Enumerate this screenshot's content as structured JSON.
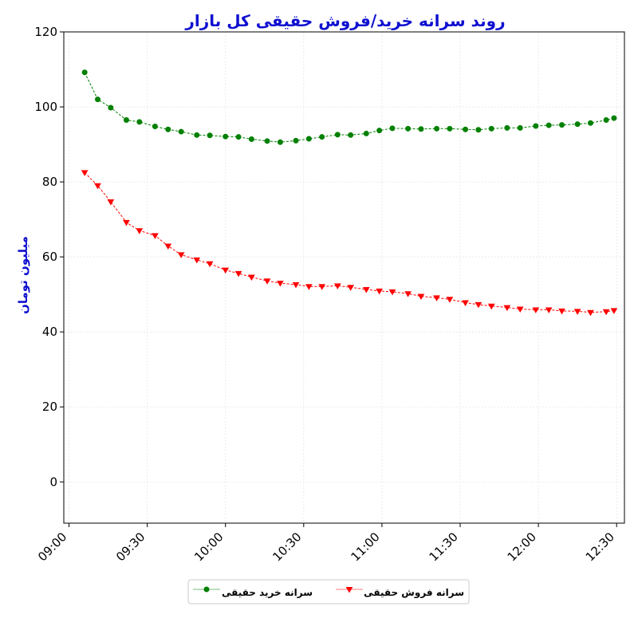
{
  "chart_data": {
    "type": "line",
    "title": "روند سرانه خرید/فروش حقیقی کل بازار",
    "xlabel": "",
    "ylabel": "میلیون تومان",
    "xlim": [
      "08:58",
      "12:33"
    ],
    "ylim": [
      -11,
      120
    ],
    "yticks": [
      0,
      20,
      40,
      60,
      80,
      100,
      120
    ],
    "xticks": [
      "09:00",
      "09:30",
      "10:00",
      "10:30",
      "11:00",
      "11:30",
      "12:00",
      "12:30"
    ],
    "grid": true,
    "legend_placement": "bottom-center",
    "series": [
      {
        "name": "سرانه خرید حقیقی",
        "color": "#008000",
        "marker": "circle",
        "linestyle": "dashed",
        "x": [
          "09:06",
          "09:11",
          "09:16",
          "09:22",
          "09:27",
          "09:33",
          "09:38",
          "09:43",
          "09:49",
          "09:54",
          "10:00",
          "10:05",
          "10:10",
          "10:16",
          "10:21",
          "10:27",
          "10:32",
          "10:37",
          "10:43",
          "10:48",
          "10:54",
          "10:59",
          "11:04",
          "11:10",
          "11:15",
          "11:21",
          "11:26",
          "11:32",
          "11:37",
          "11:42",
          "11:48",
          "11:53",
          "11:59",
          "12:04",
          "12:09",
          "12:15",
          "12:20",
          "12:26",
          "12:29"
        ],
        "values": [
          109.2,
          102.0,
          99.8,
          96.5,
          96.0,
          94.8,
          94.0,
          93.4,
          92.5,
          92.4,
          92.1,
          92.0,
          91.4,
          90.9,
          90.6,
          91.0,
          91.5,
          92.0,
          92.6,
          92.5,
          92.9,
          93.7,
          94.3,
          94.2,
          94.1,
          94.2,
          94.2,
          94.0,
          93.9,
          94.2,
          94.4,
          94.4,
          94.9,
          95.1,
          95.2,
          95.4,
          95.7,
          96.5,
          97.0
        ]
      },
      {
        "name": "سرانه فروش حقیقی",
        "color": "#ff0000",
        "marker": "triangle-down",
        "linestyle": "dashed",
        "x": [
          "09:06",
          "09:11",
          "09:16",
          "09:22",
          "09:27",
          "09:33",
          "09:38",
          "09:43",
          "09:49",
          "09:54",
          "10:00",
          "10:05",
          "10:10",
          "10:16",
          "10:21",
          "10:27",
          "10:32",
          "10:37",
          "10:43",
          "10:48",
          "10:54",
          "10:59",
          "11:04",
          "11:10",
          "11:15",
          "11:21",
          "11:26",
          "11:32",
          "11:37",
          "11:42",
          "11:48",
          "11:53",
          "11:59",
          "12:04",
          "12:09",
          "12:15",
          "12:20",
          "12:26",
          "12:29"
        ],
        "values": [
          82.5,
          79.0,
          74.7,
          69.2,
          67.0,
          65.7,
          62.9,
          60.6,
          59.2,
          58.2,
          56.5,
          55.6,
          54.6,
          53.6,
          53.0,
          52.6,
          52.1,
          52.1,
          52.3,
          51.9,
          51.3,
          50.9,
          50.7,
          50.2,
          49.5,
          49.1,
          48.7,
          47.8,
          47.3,
          46.9,
          46.5,
          46.1,
          45.9,
          45.9,
          45.6,
          45.5,
          45.2,
          45.4,
          45.7
        ]
      }
    ]
  }
}
